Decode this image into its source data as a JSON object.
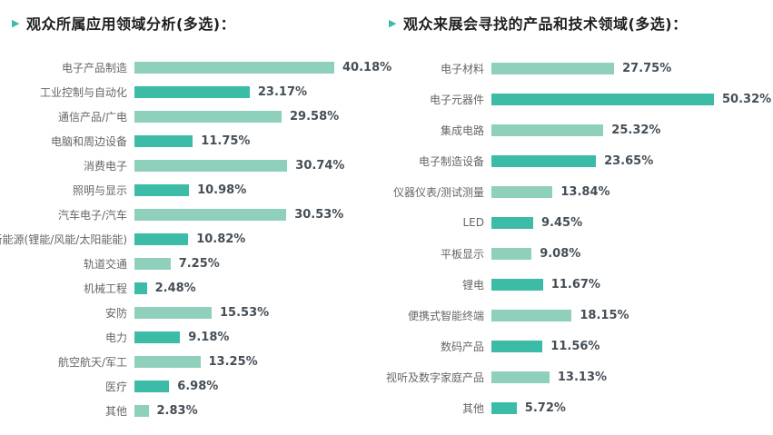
{
  "colors": {
    "bar_light": "#8fd0bd",
    "bar_dark": "#3cbca7",
    "marker": "#3cbca7",
    "title_text": "#1f1f1f",
    "label_text": "#666666",
    "value_text": "#454e56",
    "background": "#ffffff"
  },
  "chart_data": [
    {
      "type": "bar",
      "orientation": "horizontal",
      "title": "观众所属应用领域分析(多选)：",
      "legend": "none",
      "value_axis_visible": false,
      "bar_color_pattern": "alternating light/dark teal starting light",
      "categories": [
        "电子产品制造",
        "工业控制与自动化",
        "通信产品/广电",
        "电脑和周边设备",
        "消费电子",
        "照明与显示",
        "汽车电子/汽车",
        "新能源(锂能/风能/太阳能能)",
        "轨道交通",
        "机械工程",
        "安防",
        "电力",
        "航空航天/军工",
        "医疗",
        "其他"
      ],
      "values": [
        40.18,
        23.17,
        29.58,
        11.75,
        30.74,
        10.98,
        30.53,
        10.82,
        7.25,
        2.48,
        15.53,
        9.18,
        13.25,
        6.98,
        2.83
      ],
      "value_labels": [
        "40.18%",
        "23.17%",
        "29.58%",
        "11.75%",
        "30.74%",
        "10.98%",
        "30.53%",
        "10.82%",
        "7.25%",
        "2.48%",
        "15.53%",
        "9.18%",
        "13.25%",
        "6.98%",
        "2.83%"
      ],
      "xlim": [
        0,
        40.18
      ]
    },
    {
      "type": "bar",
      "orientation": "horizontal",
      "title": "观众来展会寻找的产品和技术领域(多选)：",
      "legend": "none",
      "value_axis_visible": false,
      "bar_color_pattern": "alternating light/dark teal starting light",
      "categories": [
        "电子材料",
        "电子元器件",
        "集成电路",
        "电子制造设备",
        "仪器仪表/测试测量",
        "LED",
        "平板显示",
        "锂电",
        "便携式智能终端",
        "数码产品",
        "视听及数字家庭产品",
        "其他"
      ],
      "values": [
        27.75,
        50.32,
        25.32,
        23.65,
        13.84,
        9.45,
        9.08,
        11.67,
        18.15,
        11.56,
        13.13,
        5.72
      ],
      "value_labels": [
        "27.75%",
        "50.32%",
        "25.32%",
        "23.65%",
        "13.84%",
        "9.45%",
        "9.08%",
        "11.67%",
        "18.15%",
        "11.56%",
        "13.13%",
        "5.72%"
      ],
      "xlim": [
        0,
        50.32
      ]
    }
  ]
}
